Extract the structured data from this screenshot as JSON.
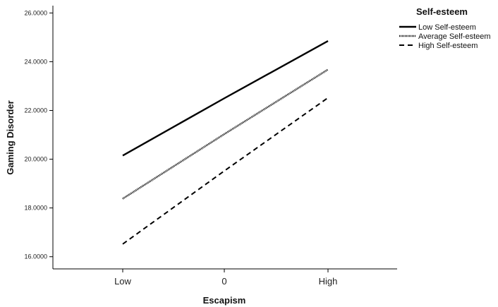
{
  "chart_data": {
    "type": "line",
    "xlabel": "Escapism",
    "ylabel": "Gaming Disorder",
    "categories": [
      "Low",
      "0",
      "High"
    ],
    "y_ticks": [
      "16.0000",
      "18.0000",
      "20.0000",
      "22.0000",
      "24.0000",
      "26.0000"
    ],
    "ylim": [
      15.5,
      26.3
    ],
    "grid": false,
    "legend": {
      "title": "Self-esteem",
      "position": "top-right"
    },
    "series": [
      {
        "name": "Low Self-esteem",
        "style": "solid",
        "values": [
          20.15,
          22.5,
          24.85
        ]
      },
      {
        "name": "Average Self-esteem",
        "style": "dotted",
        "values": [
          18.38,
          21.03,
          23.68
        ]
      },
      {
        "name": "High Self-esteem",
        "style": "dashed",
        "values": [
          16.52,
          19.52,
          22.52
        ]
      }
    ],
    "colors": {
      "line": "#000000"
    }
  }
}
